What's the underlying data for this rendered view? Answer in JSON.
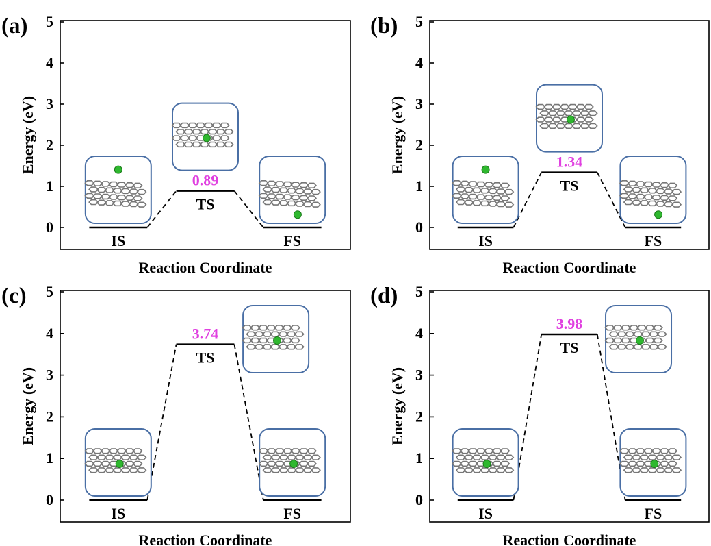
{
  "colors": {
    "barrier_label": "#e040e0",
    "inset_border": "#4a6fa5",
    "graphene_line": "#777777",
    "atom": "#2fb82f",
    "atom_edge": "#1a7a1a",
    "energy_level": "#000000"
  },
  "chart_data": [
    {
      "type": "line",
      "panel_label": "(a)",
      "xlabel": "Reaction Coordinate",
      "ylabel": "Energy (eV)",
      "ylim": [
        0,
        5
      ],
      "yticks": [
        "0",
        "1",
        "2",
        "3",
        "4",
        "5"
      ],
      "states": [
        {
          "label": "IS",
          "energy": 0.0
        },
        {
          "label": "TS",
          "energy": 0.89
        },
        {
          "label": "FS",
          "energy": 0.0
        }
      ],
      "barrier_label": "0.89",
      "insets": [
        {
          "state": "IS",
          "atom_position": "above"
        },
        {
          "state": "TS",
          "atom_position": "in-plane"
        },
        {
          "state": "FS",
          "atom_position": "below"
        }
      ]
    },
    {
      "type": "line",
      "panel_label": "(b)",
      "xlabel": "Reaction Coordinate",
      "ylabel": "Energy (eV)",
      "ylim": [
        0,
        5
      ],
      "yticks": [
        "0",
        "1",
        "2",
        "3",
        "4",
        "5"
      ],
      "states": [
        {
          "label": "IS",
          "energy": 0.0
        },
        {
          "label": "TS",
          "energy": 1.34
        },
        {
          "label": "FS",
          "energy": 0.0
        }
      ],
      "barrier_label": "1.34",
      "insets": [
        {
          "state": "IS",
          "atom_position": "above"
        },
        {
          "state": "TS",
          "atom_position": "in-plane"
        },
        {
          "state": "FS",
          "atom_position": "below"
        }
      ]
    },
    {
      "type": "line",
      "panel_label": "(c)",
      "xlabel": "Reaction Coordinate",
      "ylabel": "Energy (eV)",
      "ylim": [
        0,
        5
      ],
      "yticks": [
        "0",
        "1",
        "2",
        "3",
        "4",
        "5"
      ],
      "states": [
        {
          "label": "IS",
          "energy": 0.0
        },
        {
          "label": "TS",
          "energy": 3.74
        },
        {
          "label": "FS",
          "energy": 0.0
        }
      ],
      "barrier_label": "3.74",
      "insets": [
        {
          "state": "IS",
          "atom_position": "in-plane"
        },
        {
          "state": "TS",
          "atom_position": "in-plane"
        },
        {
          "state": "FS",
          "atom_position": "in-plane"
        }
      ]
    },
    {
      "type": "line",
      "panel_label": "(d)",
      "xlabel": "Reaction Coordinate",
      "ylabel": "Energy (eV)",
      "ylim": [
        0,
        5
      ],
      "yticks": [
        "0",
        "1",
        "2",
        "3",
        "4",
        "5"
      ],
      "states": [
        {
          "label": "IS",
          "energy": 0.0
        },
        {
          "label": "TS",
          "energy": 3.98
        },
        {
          "label": "FS",
          "energy": 0.0
        }
      ],
      "barrier_label": "3.98",
      "insets": [
        {
          "state": "IS",
          "atom_position": "in-plane"
        },
        {
          "state": "TS",
          "atom_position": "in-plane"
        },
        {
          "state": "FS",
          "atom_position": "in-plane"
        }
      ]
    }
  ]
}
